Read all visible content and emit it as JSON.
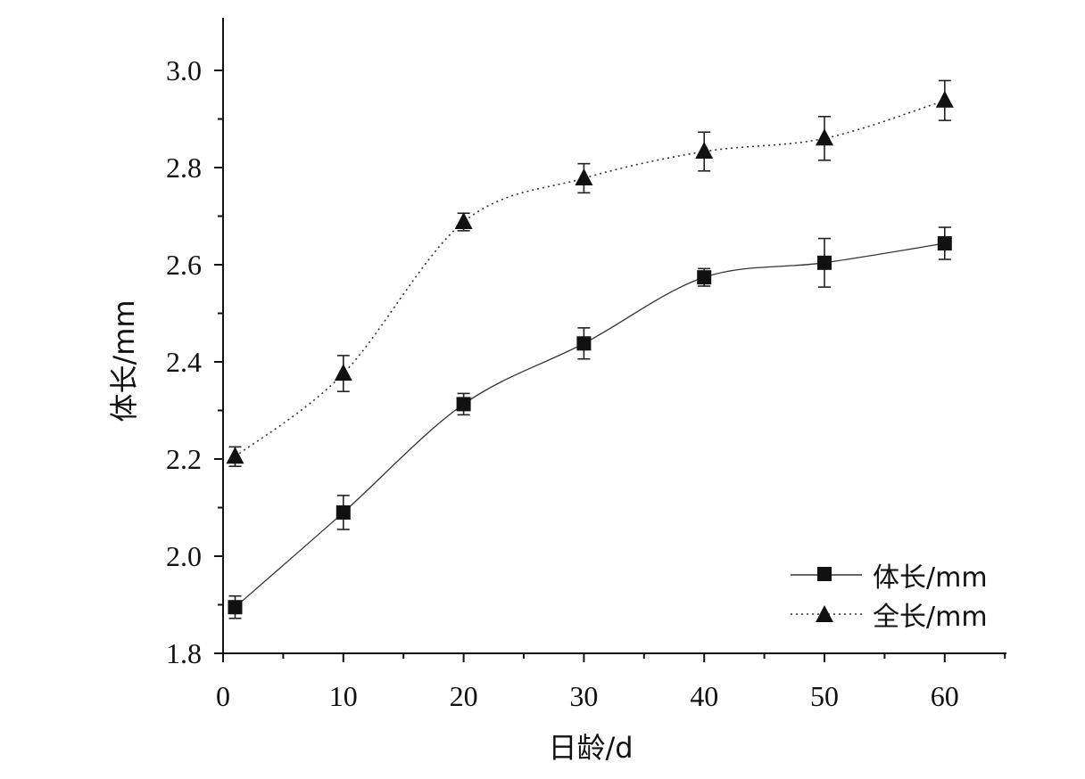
{
  "chart_data": {
    "type": "line",
    "xlabel": "日龄/d",
    "ylabel": "体长/mm",
    "xlim": [
      0,
      65
    ],
    "ylim": [
      1.8,
      3.1
    ],
    "x_ticks": [
      0,
      10,
      20,
      30,
      40,
      50,
      60
    ],
    "x_tick_labels": [
      "0",
      "10",
      "20",
      "30",
      "40",
      "50",
      "60"
    ],
    "y_ticks": [
      1.8,
      2.0,
      2.2,
      2.4,
      2.6,
      2.8,
      3.0
    ],
    "y_tick_labels": [
      "1.8",
      "2.0",
      "2.2",
      "2.4",
      "2.6",
      "2.8",
      "3.0"
    ],
    "grid": false,
    "legend_position": "bottom-right",
    "x": [
      1,
      10,
      20,
      30,
      40,
      50,
      60
    ],
    "series": [
      {
        "name": "体长/mm",
        "marker": "square",
        "line_style": "solid",
        "values": [
          1.895,
          2.09,
          2.313,
          2.438,
          2.574,
          2.604,
          2.644
        ],
        "errors": [
          0.023,
          0.035,
          0.022,
          0.032,
          0.018,
          0.05,
          0.033
        ]
      },
      {
        "name": "全长/mm",
        "marker": "triangle",
        "line_style": "dotted",
        "values": [
          2.205,
          2.376,
          2.688,
          2.778,
          2.833,
          2.86,
          2.938
        ],
        "errors": [
          0.02,
          0.037,
          0.018,
          0.03,
          0.04,
          0.045,
          0.041
        ]
      }
    ],
    "colors": {
      "axis": "#111111",
      "series": "#111111"
    }
  }
}
